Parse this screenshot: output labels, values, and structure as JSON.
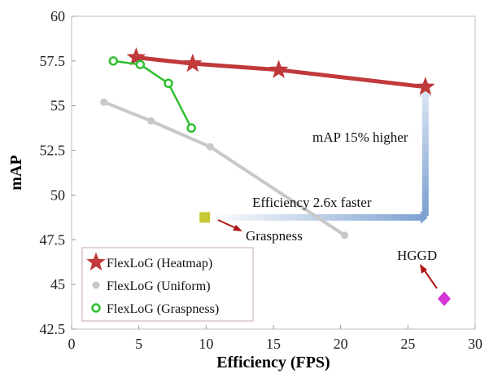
{
  "chart_data": {
    "type": "line",
    "xlabel": "Efficiency (FPS)",
    "ylabel": "mAP",
    "xlim": [
      0,
      30
    ],
    "ylim": [
      42.5,
      60
    ],
    "xticks": [
      0,
      5,
      10,
      15,
      20,
      25,
      30
    ],
    "yticks": [
      42.5,
      45,
      47.5,
      50,
      52.5,
      55,
      57.5,
      60
    ],
    "x_tick_labels": [
      "0",
      "5",
      "10",
      "15",
      "20",
      "25",
      "30"
    ],
    "y_tick_labels": [
      "42.5",
      "45",
      "47.5",
      "50",
      "52.5",
      "55",
      "57.5",
      "60"
    ],
    "grid": false,
    "legend_position": "bottom-left",
    "series": [
      {
        "name": "FlexLoG (Heatmap)",
        "marker": "star",
        "color": "#c0393b",
        "points": [
          {
            "x": 4.8,
            "y": 57.7
          },
          {
            "x": 9.0,
            "y": 57.35
          },
          {
            "x": 15.4,
            "y": 57.0
          },
          {
            "x": 26.3,
            "y": 56.05
          }
        ]
      },
      {
        "name": "FlexLoG (Uniform)",
        "marker": "dot",
        "color": "#c8c8c8",
        "points": [
          {
            "x": 2.4,
            "y": 55.2
          },
          {
            "x": 5.9,
            "y": 54.15
          },
          {
            "x": 10.3,
            "y": 52.7
          },
          {
            "x": 20.3,
            "y": 47.75
          }
        ]
      },
      {
        "name": "FlexLoG (Graspness)",
        "marker": "circle",
        "color": "#2fbf2f",
        "points": [
          {
            "x": 3.1,
            "y": 57.5
          },
          {
            "x": 5.1,
            "y": 57.3
          },
          {
            "x": 7.2,
            "y": 56.25
          },
          {
            "x": 8.9,
            "y": 53.75
          }
        ]
      }
    ],
    "single_points": [
      {
        "label": "Graspness",
        "x": 9.9,
        "y": 48.75,
        "marker": "square",
        "color": "#c8c832"
      },
      {
        "label": "HGGD",
        "x": 27.7,
        "y": 44.2,
        "marker": "diamond",
        "color": "#d535d5"
      }
    ],
    "annotations": [
      {
        "text": "Efficiency 2.6x faster",
        "arrow_from": {
          "x": 9.9,
          "y": 48.75
        },
        "arrow_to": {
          "x": 26.3,
          "y": 48.75
        },
        "color": "#7fa0cf"
      },
      {
        "text": "mAP 15% higher",
        "arrow_from": {
          "x": 26.3,
          "y": 48.75
        },
        "arrow_to": {
          "x": 26.3,
          "y": 56.05
        },
        "color": "#7fa0cf"
      }
    ]
  }
}
